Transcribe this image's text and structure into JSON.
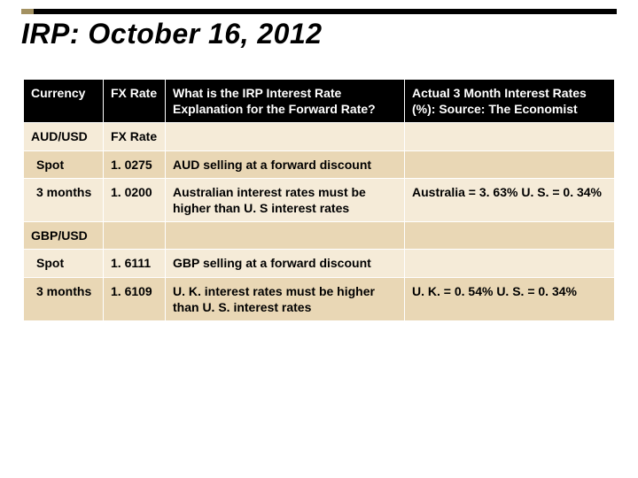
{
  "title": "IRP: October 16, 2012",
  "accent": {
    "left_color": "#a39161",
    "right_color": "#000000"
  },
  "table": {
    "header_bg": "#000000",
    "header_fg": "#ffffff",
    "row_odd_bg": "#f5ebd8",
    "row_even_bg": "#e9d7b5",
    "columns": [
      "Currency",
      "FX Rate",
      "What is the IRP Interest Rate Explanation for the Forward Rate?",
      "Actual 3 Month Interest Rates (%): Source: The Economist"
    ],
    "rows": [
      {
        "c0": "AUD/USD",
        "c1": "FX Rate",
        "c2": "",
        "c3": "",
        "indent": false
      },
      {
        "c0": "Spot",
        "c1": "1. 0275",
        "c2": "AUD selling at a forward discount",
        "c3": "",
        "indent": true
      },
      {
        "c0": "3 months",
        "c1": "1. 0200",
        "c2": "Australian interest rates must be higher than U. S interest rates",
        "c3": "Australia = 3. 63% U. S. = 0. 34%",
        "indent": true
      },
      {
        "c0": "GBP/USD",
        "c1": "",
        "c2": "",
        "c3": "",
        "indent": false
      },
      {
        "c0": "Spot",
        "c1": "1. 6111",
        "c2": "GBP selling at a forward discount",
        "c3": "",
        "indent": true
      },
      {
        "c0": "3 months",
        "c1": "1. 6109",
        "c2": "U. K. interest rates must be higher than U. S. interest rates",
        "c3": "U. K. = 0. 54% U. S. = 0. 34%",
        "indent": true
      }
    ]
  }
}
